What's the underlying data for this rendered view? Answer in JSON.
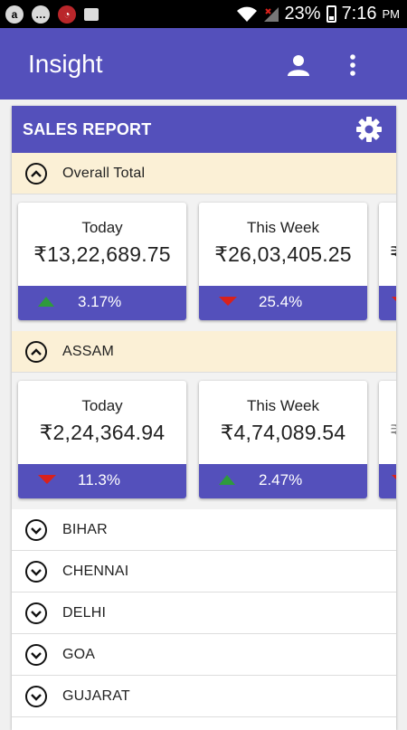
{
  "status_bar": {
    "battery": "23%",
    "time": "7:16",
    "ampm": "PM"
  },
  "app_bar": {
    "title": "Insight"
  },
  "report": {
    "title": "SALES REPORT",
    "sections": [
      {
        "label": "Overall Total",
        "cards": [
          {
            "label": "Today",
            "value": "₹13,22,689.75",
            "pct": "3.17%",
            "trend": "up"
          },
          {
            "label": "This Week",
            "value": "₹26,03,405.25",
            "pct": "25.4%",
            "trend": "down"
          },
          {
            "label": "",
            "value": "₹",
            "pct": "",
            "trend": "down"
          }
        ]
      },
      {
        "label": "ASSAM",
        "cards": [
          {
            "label": "Today",
            "value": "₹2,24,364.94",
            "pct": "11.3%",
            "trend": "down"
          },
          {
            "label": "This Week",
            "value": "₹4,74,089.54",
            "pct": "2.47%",
            "trend": "up"
          },
          {
            "label": "",
            "value": "₹",
            "pct": "",
            "trend": "down"
          }
        ]
      }
    ],
    "regions": [
      "BIHAR",
      "CHENNAI",
      "DELHI",
      "GOA",
      "GUJARAT"
    ]
  },
  "colors": {
    "primary": "#5450bb",
    "expanded_bg": "#fbf0d6",
    "up": "#2e9b3c",
    "down": "#d9211b"
  }
}
